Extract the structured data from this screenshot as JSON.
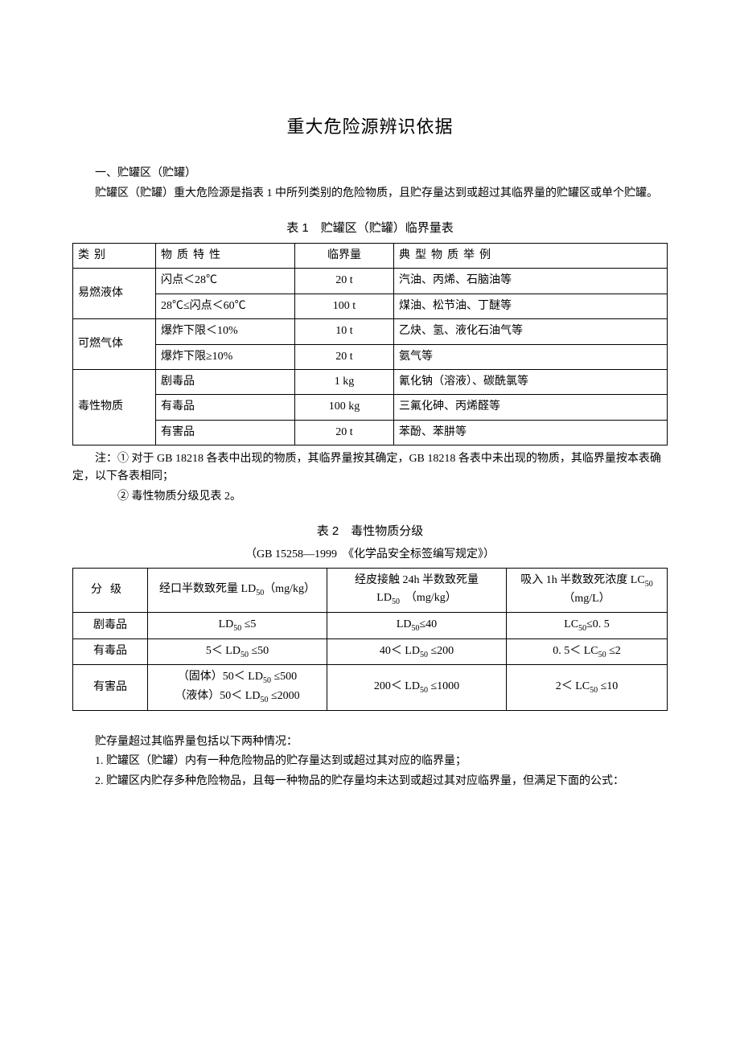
{
  "title": "重大危险源辨识依据",
  "section1_heading": "一、贮罐区（贮罐）",
  "section1_para": "贮罐区（贮罐）重大危险源是指表 1 中所列类别的危险物质，且贮存量达到或超过其临界量的贮罐区或单个贮罐。",
  "table1": {
    "caption": "表 1　贮罐区（贮罐）临界量表",
    "headers": {
      "cat": "类别",
      "prop": "物质特性",
      "limit": "临界量",
      "example": "典型物质举例"
    },
    "groups": [
      {
        "cat": "易燃液体",
        "rows": [
          {
            "prop": "闪点＜28℃",
            "limit": "20 t",
            "example": "汽油、丙烯、石脑油等"
          },
          {
            "prop": "28℃≤闪点＜60℃",
            "limit": "100 t",
            "example": "煤油、松节油、丁醚等"
          }
        ]
      },
      {
        "cat": "可燃气体",
        "rows": [
          {
            "prop": "爆炸下限＜10%",
            "limit": "10 t",
            "example": "乙炔、氢、液化石油气等"
          },
          {
            "prop": "爆炸下限≥10%",
            "limit": "20 t",
            "example": "氨气等"
          }
        ]
      },
      {
        "cat": "毒性物质",
        "rows": [
          {
            "prop": "剧毒品",
            "limit": "1 kg",
            "example": "氰化钠（溶液）、碳酰氯等"
          },
          {
            "prop": "有毒品",
            "limit": "100 kg",
            "example": "三氟化砷、丙烯醛等"
          },
          {
            "prop": "有害品",
            "limit": "20 t",
            "example": "苯酚、苯肼等"
          }
        ]
      }
    ],
    "note1": "注：① 对于 GB 18218 各表中出现的物质，其临界量按其确定，GB 18218 各表中未出现的物质，其临界量按本表确定，以下各表相同；",
    "note2": "② 毒性物质分级见表 2。"
  },
  "table2": {
    "caption": "表 2　毒性物质分级",
    "sub": "（GB 15258—1999　《化学品安全标签编写规定》）",
    "headers": {
      "grade": "分级",
      "oral": "经口半数致死量 LD₅₀（mg/kg）",
      "skin_l1": "经皮接触 24h 半数致死量",
      "skin_l2": "LD₅₀　（mg/kg）",
      "inhale_l1": "吸入 1h 半数致死浓度 LC₅₀",
      "inhale_l2": "（mg/L）"
    },
    "rows": [
      {
        "grade": "剧毒品",
        "oral": "LD₅₀ ≤5",
        "skin": "LD₅₀≤40",
        "inhale": "LC₅₀≤0. 5"
      },
      {
        "grade": "有毒品",
        "oral": "5＜ LD₅₀ ≤50",
        "skin": "40＜ LD₅₀ ≤200",
        "inhale": "0. 5＜ LC₅₀ ≤2"
      },
      {
        "grade": "有害品",
        "oral_l1": "（固体）50＜ LD₅₀ ≤500",
        "oral_l2": "（液体）50＜ LD₅₀ ≤2000",
        "skin": "200＜ LD₅₀ ≤1000",
        "inhale": "2＜ LC₅₀ ≤10"
      }
    ]
  },
  "tail": {
    "p1": "贮存量超过其临界量包括以下两种情况：",
    "p2": "1. 贮罐区（贮罐）内有一种危险物品的贮存量达到或超过其对应的临界量；",
    "p3": "2. 贮罐区内贮存多种危险物品，且每一种物品的贮存量均未达到或超过其对应临界量，但满足下面的公式："
  }
}
